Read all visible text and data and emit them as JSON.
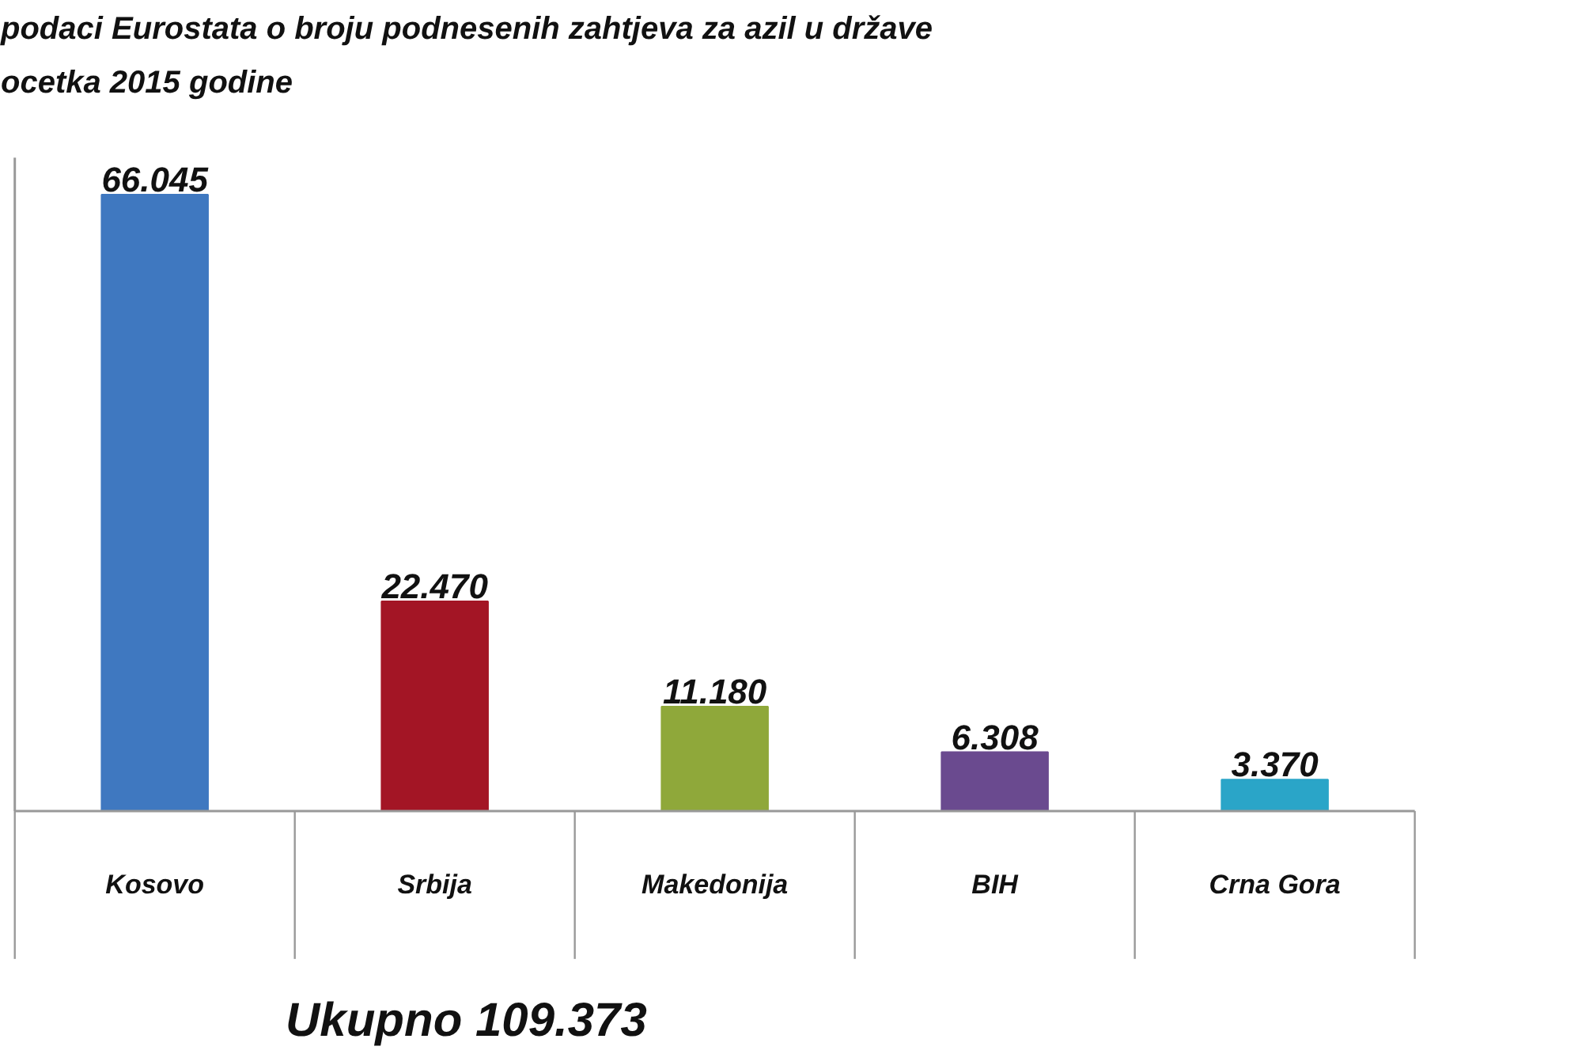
{
  "chart_data": {
    "type": "bar",
    "title": "podaci Eurostata o broju  podnesenih zahtjeva za azil u države",
    "subtitle": "ocetka 2015 godine",
    "categories": [
      "Kosovo",
      "Srbija",
      "Makedonija",
      "BIH",
      "Crna Gora"
    ],
    "values": [
      66045,
      22470,
      11180,
      6308,
      3370
    ],
    "colors": [
      "#3f78c0",
      "#a31525",
      "#8fa83a",
      "#6a4a8f",
      "#2aa5c8"
    ],
    "value_labels": [
      "66.045",
      "22.470",
      "11.180",
      "6.308",
      "3.370"
    ],
    "annotations": [
      "Ukupno 109.373"
    ],
    "grid": false
  }
}
